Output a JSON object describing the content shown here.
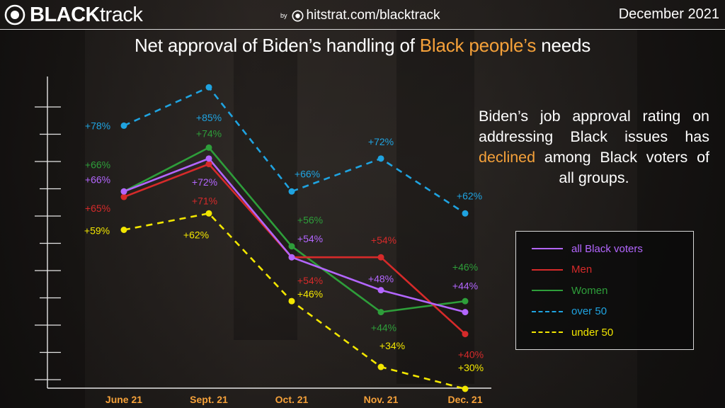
{
  "header": {
    "brand_prefix": "BLACK",
    "brand_suffix": "track",
    "by_label": "by",
    "source": "hitstrat.com/blacktrack",
    "date": "December 2021"
  },
  "title": {
    "before": "Net approval of Biden’s handling of ",
    "highlight": "Black people’s",
    "after": " needs"
  },
  "annotation": {
    "before": "Biden’s job approval rating on addressing Black issues has ",
    "highlight": "declined",
    "after": " among Black voters of all groups."
  },
  "colors": {
    "accent": "#f5a13a",
    "all_black_voters": "#b366ff",
    "men": "#d62a2a",
    "women": "#2e9e3a",
    "over_50": "#1fa3e0",
    "under_50": "#f2e600",
    "x_tick": "#f5a13a"
  },
  "chart_data": {
    "type": "line",
    "categories": [
      "June 21",
      "Sept. 21",
      "Oct. 21",
      "Nov. 21",
      "Dec. 21"
    ],
    "ylim": [
      30,
      88
    ],
    "grid": false,
    "legend_position": "right",
    "series": [
      {
        "key": "over_50",
        "name": "over 50",
        "style": "dashed",
        "values": [
          78,
          85,
          66,
          72,
          62
        ],
        "labels": [
          "+78%",
          "+85%",
          "+66%",
          "+72%",
          "+62%"
        ]
      },
      {
        "key": "women",
        "name": "Women",
        "style": "solid",
        "values": [
          66,
          74,
          56,
          44,
          46
        ],
        "labels": [
          "+66%",
          "+74%",
          "+56%",
          "+44%",
          "+46%"
        ]
      },
      {
        "key": "all_black_voters",
        "name": "all Black voters",
        "style": "solid",
        "values": [
          66,
          72,
          54,
          48,
          44
        ],
        "labels": [
          "+66%",
          "+72%",
          "+54%",
          "+48%",
          "+44%"
        ]
      },
      {
        "key": "men",
        "name": "Men",
        "style": "solid",
        "values": [
          65,
          71,
          54,
          54,
          40
        ],
        "labels": [
          "+65%",
          "+71%",
          "+54%",
          "+54%",
          "+40%"
        ]
      },
      {
        "key": "under_50",
        "name": "under 50",
        "style": "dashed",
        "values": [
          59,
          62,
          46,
          34,
          30
        ],
        "labels": [
          "+59%",
          "+62%",
          "+46%",
          "+34%",
          "+30%"
        ]
      }
    ]
  },
  "legend": {
    "items": [
      {
        "key": "all_black_voters",
        "label": "all Black voters",
        "style": "solid"
      },
      {
        "key": "men",
        "label": "Men",
        "style": "solid"
      },
      {
        "key": "women",
        "label": "Women",
        "style": "solid"
      },
      {
        "key": "over_50",
        "label": "over 50",
        "style": "dashed"
      },
      {
        "key": "under_50",
        "label": "under 50",
        "style": "dashed"
      }
    ]
  }
}
